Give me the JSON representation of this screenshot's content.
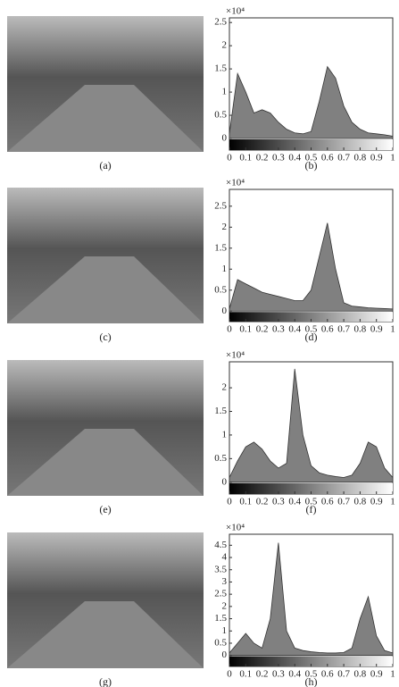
{
  "photos": [
    {
      "caption": "(a)"
    },
    {
      "caption": "(c)"
    },
    {
      "caption": "(e)"
    },
    {
      "caption": "(g)"
    }
  ],
  "chart_data": [
    {
      "type": "area",
      "caption": "(b)",
      "y_scale_label": "×10⁴",
      "color": "#808080",
      "x": [
        0,
        0.05,
        0.1,
        0.15,
        0.2,
        0.25,
        0.3,
        0.35,
        0.4,
        0.45,
        0.5,
        0.55,
        0.6,
        0.65,
        0.7,
        0.75,
        0.8,
        0.85,
        0.9,
        0.95,
        1
      ],
      "values": [
        0.1,
        1.4,
        1.0,
        0.55,
        0.62,
        0.55,
        0.35,
        0.2,
        0.12,
        0.1,
        0.15,
        0.8,
        1.55,
        1.3,
        0.7,
        0.35,
        0.2,
        0.12,
        0.1,
        0.08,
        0.05
      ],
      "xlim": [
        0,
        1
      ],
      "xticks": [
        0,
        0.1,
        0.2,
        0.3,
        0.4,
        0.5,
        0.6,
        0.7,
        0.8,
        0.9,
        1
      ],
      "ylim": [
        -0.25,
        2.6
      ],
      "yticks": [
        0,
        0.5,
        1,
        1.5,
        2,
        2.5
      ]
    },
    {
      "type": "area",
      "caption": "(d)",
      "y_scale_label": "×10⁴",
      "color": "#808080",
      "x": [
        0,
        0.05,
        0.1,
        0.15,
        0.2,
        0.25,
        0.3,
        0.35,
        0.4,
        0.45,
        0.5,
        0.55,
        0.6,
        0.65,
        0.7,
        0.75,
        0.8,
        0.85,
        0.9,
        0.95,
        1
      ],
      "values": [
        0.05,
        0.75,
        0.65,
        0.55,
        0.45,
        0.4,
        0.35,
        0.3,
        0.25,
        0.25,
        0.5,
        1.3,
        2.1,
        1.0,
        0.2,
        0.12,
        0.1,
        0.08,
        0.07,
        0.06,
        0.05
      ],
      "xlim": [
        0,
        1
      ],
      "xticks": [
        0,
        0.1,
        0.2,
        0.3,
        0.4,
        0.5,
        0.6,
        0.7,
        0.8,
        0.9,
        1
      ],
      "ylim": [
        -0.25,
        2.9
      ],
      "yticks": [
        0,
        0.5,
        1,
        1.5,
        2,
        2.5
      ]
    },
    {
      "type": "area",
      "caption": "(f)",
      "y_scale_label": "×10⁴",
      "color": "#808080",
      "x": [
        0,
        0.05,
        0.1,
        0.15,
        0.2,
        0.25,
        0.3,
        0.35,
        0.4,
        0.45,
        0.5,
        0.55,
        0.6,
        0.65,
        0.7,
        0.75,
        0.8,
        0.85,
        0.9,
        0.95,
        1
      ],
      "values": [
        0.1,
        0.45,
        0.75,
        0.85,
        0.7,
        0.45,
        0.3,
        0.4,
        2.4,
        1.0,
        0.35,
        0.2,
        0.15,
        0.12,
        0.1,
        0.15,
        0.4,
        0.85,
        0.75,
        0.3,
        0.1
      ],
      "xlim": [
        0,
        1
      ],
      "xticks": [
        0,
        0.1,
        0.2,
        0.3,
        0.4,
        0.5,
        0.6,
        0.7,
        0.8,
        0.9,
        1
      ],
      "ylim": [
        -0.25,
        2.55
      ],
      "yticks": [
        0,
        0.5,
        1,
        1.5,
        2
      ]
    },
    {
      "type": "area",
      "caption": "(h)",
      "y_scale_label": "×10⁴",
      "color": "#808080",
      "x": [
        0,
        0.05,
        0.1,
        0.15,
        0.2,
        0.25,
        0.3,
        0.35,
        0.4,
        0.45,
        0.5,
        0.55,
        0.6,
        0.65,
        0.7,
        0.75,
        0.8,
        0.85,
        0.9,
        0.95,
        1
      ],
      "values": [
        0.1,
        0.5,
        0.9,
        0.5,
        0.3,
        1.5,
        4.6,
        1.0,
        0.3,
        0.2,
        0.15,
        0.12,
        0.1,
        0.1,
        0.12,
        0.3,
        1.5,
        2.4,
        0.8,
        0.2,
        0.1
      ],
      "xlim": [
        0,
        1
      ],
      "xticks": [
        0,
        0.1,
        0.2,
        0.3,
        0.4,
        0.5,
        0.6,
        0.7,
        0.8,
        0.9,
        1
      ],
      "ylim": [
        -0.45,
        4.95
      ],
      "yticks": [
        0,
        0.5,
        1,
        1.5,
        2,
        2.5,
        3,
        3.5,
        4,
        4.5
      ]
    }
  ]
}
